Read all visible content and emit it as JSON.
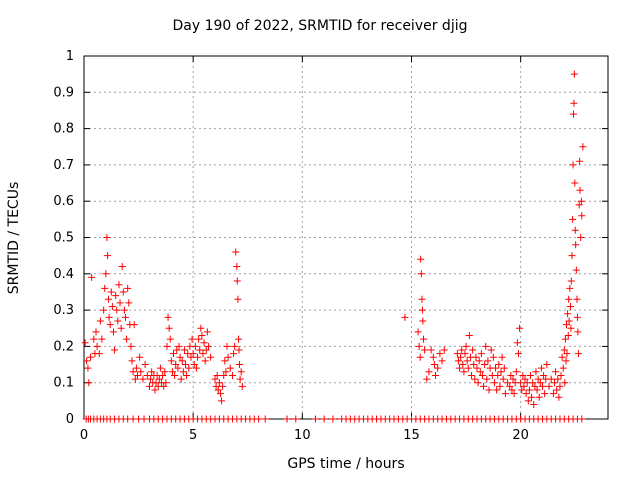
{
  "chart_data": {
    "type": "scatter",
    "title": "Day 190 of 2022, SRMTID for receiver djig",
    "xlabel": "GPS time / hours",
    "ylabel": "SRMTID / TECUs",
    "xlim": [
      0,
      24
    ],
    "ylim": [
      0,
      1
    ],
    "xticks": [
      0,
      5,
      10,
      15,
      20
    ],
    "yticks": [
      0,
      0.1,
      0.2,
      0.3,
      0.4,
      0.5,
      0.6,
      0.7,
      0.8,
      0.9,
      1
    ],
    "grid": true,
    "marker": "+",
    "color": "#ff0000",
    "series": [
      {
        "name": "SRMTID",
        "points": [
          [
            0.05,
            0.21
          ],
          [
            0.12,
            0.16
          ],
          [
            0.18,
            0.14
          ],
          [
            0.22,
            0.1
          ],
          [
            0.3,
            0.17
          ],
          [
            0.35,
            0.39
          ],
          [
            0.45,
            0.22
          ],
          [
            0.5,
            0.18
          ],
          [
            0.55,
            0.24
          ],
          [
            0.6,
            0.2
          ],
          [
            0.7,
            0.18
          ],
          [
            0.75,
            0.27
          ],
          [
            0.82,
            0.22
          ],
          [
            0.9,
            0.3
          ],
          [
            0.95,
            0.36
          ],
          [
            1.0,
            0.4
          ],
          [
            1.05,
            0.5
          ],
          [
            1.08,
            0.45
          ],
          [
            1.12,
            0.33
          ],
          [
            1.15,
            0.28
          ],
          [
            1.2,
            0.26
          ],
          [
            1.25,
            0.35
          ],
          [
            1.3,
            0.31
          ],
          [
            1.35,
            0.24
          ],
          [
            1.4,
            0.19
          ],
          [
            1.45,
            0.34
          ],
          [
            1.5,
            0.3
          ],
          [
            1.55,
            0.27
          ],
          [
            1.6,
            0.37
          ],
          [
            1.65,
            0.32
          ],
          [
            1.7,
            0.25
          ],
          [
            1.75,
            0.42
          ],
          [
            1.8,
            0.35
          ],
          [
            1.85,
            0.3
          ],
          [
            1.9,
            0.28
          ],
          [
            1.95,
            0.22
          ],
          [
            2.0,
            0.36
          ],
          [
            2.05,
            0.32
          ],
          [
            2.1,
            0.26
          ],
          [
            2.15,
            0.2
          ],
          [
            2.2,
            0.16
          ],
          [
            2.25,
            0.13
          ],
          [
            2.3,
            0.26
          ],
          [
            2.35,
            0.11
          ],
          [
            2.4,
            0.14
          ],
          [
            2.45,
            0.12
          ],
          [
            2.55,
            0.17
          ],
          [
            2.6,
            0.13
          ],
          [
            2.7,
            0.11
          ],
          [
            2.8,
            0.15
          ],
          [
            2.9,
            0.12
          ],
          [
            3.0,
            0.09
          ],
          [
            3.05,
            0.11
          ],
          [
            3.1,
            0.13
          ],
          [
            3.15,
            0.1
          ],
          [
            3.2,
            0.12
          ],
          [
            3.25,
            0.08
          ],
          [
            3.3,
            0.1
          ],
          [
            3.35,
            0.12
          ],
          [
            3.4,
            0.09
          ],
          [
            3.45,
            0.11
          ],
          [
            3.5,
            0.14
          ],
          [
            3.55,
            0.1
          ],
          [
            3.6,
            0.12
          ],
          [
            3.65,
            0.09
          ],
          [
            3.7,
            0.13
          ],
          [
            3.75,
            0.1
          ],
          [
            3.8,
            0.2
          ],
          [
            3.85,
            0.28
          ],
          [
            3.9,
            0.25
          ],
          [
            3.95,
            0.22
          ],
          [
            4.0,
            0.16
          ],
          [
            4.05,
            0.13
          ],
          [
            4.1,
            0.18
          ],
          [
            4.15,
            0.12
          ],
          [
            4.2,
            0.15
          ],
          [
            4.25,
            0.19
          ],
          [
            4.3,
            0.14
          ],
          [
            4.35,
            0.2
          ],
          [
            4.4,
            0.17
          ],
          [
            4.45,
            0.11
          ],
          [
            4.5,
            0.16
          ],
          [
            4.55,
            0.13
          ],
          [
            4.6,
            0.19
          ],
          [
            4.65,
            0.15
          ],
          [
            4.7,
            0.12
          ],
          [
            4.75,
            0.18
          ],
          [
            4.8,
            0.14
          ],
          [
            4.85,
            0.2
          ],
          [
            4.9,
            0.17
          ],
          [
            4.95,
            0.22
          ],
          [
            5.0,
            0.18
          ],
          [
            5.05,
            0.15
          ],
          [
            5.1,
            0.2
          ],
          [
            5.15,
            0.14
          ],
          [
            5.2,
            0.17
          ],
          [
            5.25,
            0.22
          ],
          [
            5.3,
            0.19
          ],
          [
            5.35,
            0.25
          ],
          [
            5.4,
            0.23
          ],
          [
            5.45,
            0.18
          ],
          [
            5.5,
            0.21
          ],
          [
            5.55,
            0.16
          ],
          [
            5.6,
            0.19
          ],
          [
            5.65,
            0.24
          ],
          [
            5.7,
            0.2
          ],
          [
            5.8,
            0.17
          ],
          [
            6.0,
            0.11
          ],
          [
            6.05,
            0.09
          ],
          [
            6.1,
            0.12
          ],
          [
            6.15,
            0.08
          ],
          [
            6.2,
            0.1
          ],
          [
            6.25,
            0.07
          ],
          [
            6.3,
            0.05
          ],
          [
            6.35,
            0.09
          ],
          [
            6.4,
            0.12
          ],
          [
            6.45,
            0.16
          ],
          [
            6.5,
            0.13
          ],
          [
            6.55,
            0.2
          ],
          [
            6.6,
            0.17
          ],
          [
            6.7,
            0.14
          ],
          [
            6.8,
            0.12
          ],
          [
            6.85,
            0.18
          ],
          [
            6.9,
            0.2
          ],
          [
            6.95,
            0.46
          ],
          [
            7.0,
            0.42
          ],
          [
            7.02,
            0.38
          ],
          [
            7.05,
            0.33
          ],
          [
            7.08,
            0.22
          ],
          [
            7.1,
            0.19
          ],
          [
            7.12,
            0.15
          ],
          [
            7.15,
            0.11
          ],
          [
            7.2,
            0.13
          ],
          [
            7.25,
            0.09
          ],
          [
            14.7,
            0.28
          ],
          [
            15.3,
            0.24
          ],
          [
            15.35,
            0.2
          ],
          [
            15.4,
            0.17
          ],
          [
            15.42,
            0.44
          ],
          [
            15.45,
            0.4
          ],
          [
            15.48,
            0.33
          ],
          [
            15.5,
            0.3
          ],
          [
            15.52,
            0.27
          ],
          [
            15.55,
            0.22
          ],
          [
            15.6,
            0.19
          ],
          [
            15.7,
            0.11
          ],
          [
            15.8,
            0.13
          ],
          [
            15.9,
            0.19
          ],
          [
            16.0,
            0.17
          ],
          [
            16.05,
            0.15
          ],
          [
            16.1,
            0.12
          ],
          [
            16.2,
            0.14
          ],
          [
            16.3,
            0.18
          ],
          [
            16.4,
            0.16
          ],
          [
            16.5,
            0.19
          ],
          [
            17.1,
            0.18
          ],
          [
            17.15,
            0.16
          ],
          [
            17.2,
            0.14
          ],
          [
            17.25,
            0.17
          ],
          [
            17.3,
            0.19
          ],
          [
            17.35,
            0.15
          ],
          [
            17.4,
            0.13
          ],
          [
            17.45,
            0.18
          ],
          [
            17.5,
            0.2
          ],
          [
            17.55,
            0.16
          ],
          [
            17.6,
            0.14
          ],
          [
            17.65,
            0.23
          ],
          [
            17.7,
            0.17
          ],
          [
            17.75,
            0.12
          ],
          [
            17.8,
            0.19
          ],
          [
            17.85,
            0.15
          ],
          [
            17.9,
            0.11
          ],
          [
            17.95,
            0.17
          ],
          [
            18.0,
            0.14
          ],
          [
            18.05,
            0.1
          ],
          [
            18.1,
            0.16
          ],
          [
            18.15,
            0.13
          ],
          [
            18.2,
            0.18
          ],
          [
            18.25,
            0.12
          ],
          [
            18.3,
            0.09
          ],
          [
            18.35,
            0.15
          ],
          [
            18.4,
            0.2
          ],
          [
            18.45,
            0.11
          ],
          [
            18.5,
            0.16
          ],
          [
            18.55,
            0.08
          ],
          [
            18.6,
            0.14
          ],
          [
            18.65,
            0.19
          ],
          [
            18.7,
            0.12
          ],
          [
            18.75,
            0.17
          ],
          [
            18.8,
            0.1
          ],
          [
            18.85,
            0.14
          ],
          [
            18.9,
            0.08
          ],
          [
            18.95,
            0.12
          ],
          [
            19.0,
            0.15
          ],
          [
            19.05,
            0.09
          ],
          [
            19.1,
            0.13
          ],
          [
            19.15,
            0.17
          ],
          [
            19.2,
            0.11
          ],
          [
            19.25,
            0.14
          ],
          [
            19.3,
            0.07
          ],
          [
            19.4,
            0.1
          ],
          [
            19.5,
            0.09
          ],
          [
            19.55,
            0.12
          ],
          [
            19.6,
            0.08
          ],
          [
            19.65,
            0.11
          ],
          [
            19.7,
            0.07
          ],
          [
            19.75,
            0.1
          ],
          [
            19.8,
            0.13
          ],
          [
            19.85,
            0.21
          ],
          [
            19.9,
            0.18
          ],
          [
            19.95,
            0.25
          ],
          [
            20.0,
            0.1
          ],
          [
            20.05,
            0.08
          ],
          [
            20.1,
            0.12
          ],
          [
            20.15,
            0.09
          ],
          [
            20.2,
            0.11
          ],
          [
            20.25,
            0.07
          ],
          [
            20.3,
            0.1
          ],
          [
            20.35,
            0.05
          ],
          [
            20.4,
            0.08
          ],
          [
            20.45,
            0.12
          ],
          [
            20.5,
            0.06
          ],
          [
            20.55,
            0.1
          ],
          [
            20.6,
            0.04
          ],
          [
            20.65,
            0.09
          ],
          [
            20.7,
            0.13
          ],
          [
            20.75,
            0.08
          ],
          [
            20.8,
            0.11
          ],
          [
            20.85,
            0.06
          ],
          [
            20.9,
            0.1
          ],
          [
            20.95,
            0.14
          ],
          [
            21.0,
            0.09
          ],
          [
            21.05,
            0.12
          ],
          [
            21.1,
            0.07
          ],
          [
            21.15,
            0.11
          ],
          [
            21.2,
            0.15
          ],
          [
            21.3,
            0.09
          ],
          [
            21.4,
            0.11
          ],
          [
            21.5,
            0.07
          ],
          [
            21.55,
            0.1
          ],
          [
            21.6,
            0.13
          ],
          [
            21.65,
            0.08
          ],
          [
            21.7,
            0.11
          ],
          [
            21.75,
            0.06
          ],
          [
            21.8,
            0.09
          ],
          [
            21.85,
            0.12
          ],
          [
            21.9,
            0.17
          ],
          [
            21.95,
            0.14
          ],
          [
            22.0,
            0.19
          ],
          [
            22.02,
            0.1
          ],
          [
            22.05,
            0.22
          ],
          [
            22.08,
            0.16
          ],
          [
            22.1,
            0.26
          ],
          [
            22.12,
            0.18
          ],
          [
            22.15,
            0.29
          ],
          [
            22.18,
            0.23
          ],
          [
            22.2,
            0.33
          ],
          [
            22.22,
            0.27
          ],
          [
            22.25,
            0.36
          ],
          [
            22.28,
            0.31
          ],
          [
            22.3,
            0.25
          ],
          [
            22.32,
            0.38
          ],
          [
            22.35,
            0.45
          ],
          [
            22.38,
            0.55
          ],
          [
            22.4,
            0.7
          ],
          [
            22.42,
            0.84
          ],
          [
            22.44,
            0.87
          ],
          [
            22.46,
            0.95
          ],
          [
            22.48,
            0.65
          ],
          [
            22.5,
            0.52
          ],
          [
            22.52,
            0.48
          ],
          [
            22.55,
            0.41
          ],
          [
            22.58,
            0.33
          ],
          [
            22.6,
            0.28
          ],
          [
            22.62,
            0.24
          ],
          [
            22.65,
            0.18
          ],
          [
            22.68,
            0.59
          ],
          [
            22.7,
            0.71
          ],
          [
            22.72,
            0.63
          ],
          [
            22.75,
            0.5
          ],
          [
            22.78,
            0.6
          ],
          [
            22.8,
            0.56
          ],
          [
            22.85,
            0.75
          ]
        ],
        "zero_points_x": [
          0.1,
          0.2,
          0.3,
          0.45,
          0.6,
          0.75,
          0.9,
          1.05,
          1.2,
          1.4,
          1.6,
          1.8,
          2.0,
          2.25,
          2.5,
          2.75,
          3.0,
          3.2,
          3.4,
          3.6,
          3.8,
          4.0,
          4.2,
          4.4,
          4.6,
          4.8,
          5.0,
          5.2,
          5.4,
          5.6,
          5.8,
          6.0,
          6.2,
          6.4,
          6.6,
          6.8,
          7.0,
          7.2,
          7.4,
          7.6,
          7.8,
          8.0,
          8.3,
          9.3,
          9.7,
          10.6,
          11.0,
          11.4,
          11.8,
          12.0,
          12.2,
          12.4,
          12.6,
          12.8,
          13.0,
          13.2,
          13.4,
          13.6,
          13.8,
          14.0,
          14.2,
          14.4,
          14.6,
          14.8,
          15.0,
          15.2,
          15.4,
          15.6,
          15.8,
          16.0,
          16.2,
          16.4,
          16.6,
          16.8,
          17.0,
          17.2,
          17.4,
          17.6,
          17.8,
          18.0,
          18.2,
          18.4,
          18.6,
          18.8,
          19.0,
          19.2,
          19.4,
          19.6,
          19.8,
          20.0,
          20.2,
          20.4,
          20.6,
          20.8,
          21.0,
          21.2,
          21.4,
          21.6,
          21.8,
          22.0,
          22.2,
          22.4,
          22.6,
          22.8
        ]
      }
    ]
  }
}
